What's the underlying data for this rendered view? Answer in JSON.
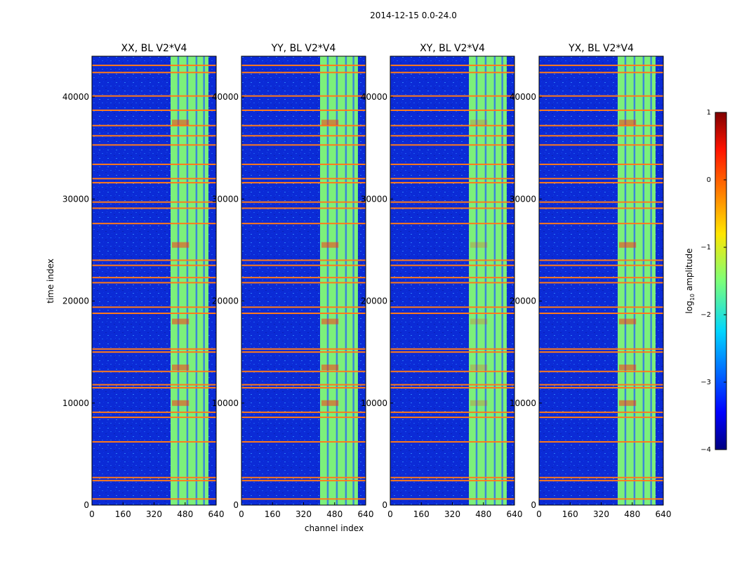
{
  "figure": {
    "suptitle": "2014-12-15 0.0-24.0",
    "xlabel": "channel index",
    "ylabel": "time index"
  },
  "chart_data": {
    "type": "heatmap",
    "title": "2014-12-15 0.0-24.0",
    "xlabel": "channel index",
    "ylabel": "time index",
    "xlim": [
      0,
      640
    ],
    "ylim": [
      0,
      44000
    ],
    "x_ticks": [
      0,
      160,
      320,
      480,
      640
    ],
    "y_ticks": [
      0,
      10000,
      20000,
      30000,
      40000
    ],
    "panels": [
      {
        "title": "XX, BL V2*V4",
        "pol": "XX"
      },
      {
        "title": "YY, BL V2*V4",
        "pol": "YY"
      },
      {
        "title": "XY, BL V2*V4",
        "pol": "XY"
      },
      {
        "title": "YX, BL V2*V4",
        "pol": "YX"
      }
    ],
    "colorbar": {
      "label": "log10 amplitude",
      "label_main": "log",
      "label_sub": "10",
      "label_rest": " amplitude",
      "range": [
        -4,
        1
      ],
      "ticks": [
        1,
        0,
        -1,
        -2,
        -3,
        -4
      ],
      "tick_labels": [
        "1",
        "0",
        "−1",
        "−2",
        "−3",
        "−4"
      ]
    },
    "bright_channel_band": [
      405,
      600
    ],
    "flagged_time_rows": [
      600,
      2400,
      2700,
      6200,
      8600,
      9100,
      11500,
      11800,
      13100,
      15000,
      15300,
      18800,
      19400,
      21800,
      22300,
      23500,
      24000,
      27600,
      29100,
      29700,
      31600,
      32000,
      33400,
      35300,
      36200,
      37200,
      38700,
      40100,
      42400,
      43100
    ],
    "colors": {
      "background": "#0a2ad8",
      "band": "#7cf07a",
      "flag": "#ff7a1a",
      "hot": "#ff3a10"
    }
  }
}
